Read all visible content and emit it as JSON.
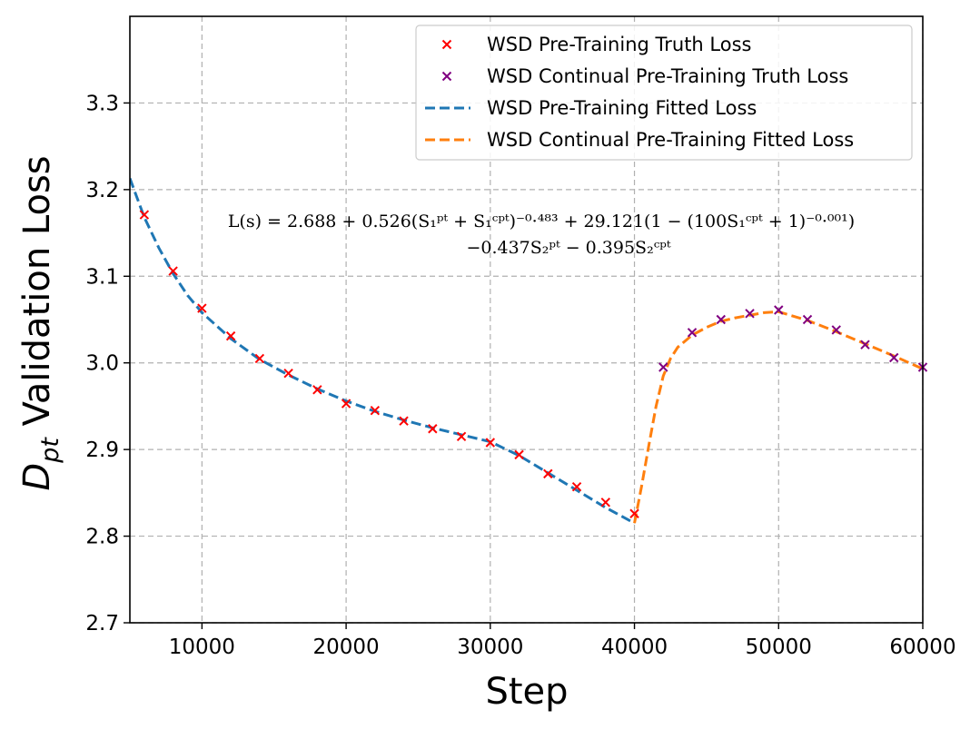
{
  "chart_data": {
    "type": "line",
    "xlabel": "Step",
    "ylabel": {
      "base": "D",
      "subscript": "pt",
      "rest": " Validation Loss"
    },
    "xlim": [
      5000,
      60000
    ],
    "ylim": [
      2.7,
      3.4
    ],
    "x_ticks": [
      10000,
      20000,
      30000,
      40000,
      50000,
      60000
    ],
    "y_ticks": [
      2.7,
      2.8,
      2.9,
      3.0,
      3.1,
      3.2,
      3.3
    ],
    "grid": true,
    "legend_position": "top-right",
    "annotation": {
      "line1": "L(s) = 2.688 + 0.526(S₁ᵖᵗ + S₁ᶜᵖᵗ)⁻⁰·⁴⁸³ + 29.121(1 − (100S₁ᶜᵖᵗ + 1)⁻⁰·⁰⁰¹)",
      "line2": "−0.437S₂ᵖᵗ − 0.395S₂ᶜᵖᵗ"
    },
    "series": [
      {
        "name": "WSD Pre-Training Truth Loss",
        "kind": "marker",
        "color": "#ff0000",
        "points": [
          [
            6000,
            3.171
          ],
          [
            8000,
            3.106
          ],
          [
            10000,
            3.063
          ],
          [
            12000,
            3.031
          ],
          [
            14000,
            3.005
          ],
          [
            16000,
            2.988
          ],
          [
            18000,
            2.969
          ],
          [
            20000,
            2.953
          ],
          [
            22000,
            2.945
          ],
          [
            24000,
            2.933
          ],
          [
            26000,
            2.924
          ],
          [
            28000,
            2.915
          ],
          [
            30000,
            2.908
          ],
          [
            32000,
            2.894
          ],
          [
            34000,
            2.872
          ],
          [
            36000,
            2.857
          ],
          [
            38000,
            2.839
          ],
          [
            40000,
            2.826
          ]
        ]
      },
      {
        "name": "WSD Continual Pre-Training Truth Loss",
        "kind": "marker",
        "color": "#800080",
        "points": [
          [
            42000,
            2.995
          ],
          [
            44000,
            3.035
          ],
          [
            46000,
            3.05
          ],
          [
            48000,
            3.057
          ],
          [
            50000,
            3.061
          ],
          [
            52000,
            3.05
          ],
          [
            54000,
            3.038
          ],
          [
            56000,
            3.021
          ],
          [
            58000,
            3.006
          ],
          [
            60000,
            2.995
          ]
        ]
      },
      {
        "name": "WSD Pre-Training Fitted Loss",
        "kind": "dashed-line",
        "color": "#1f77b4",
        "points": [
          [
            5000,
            3.213
          ],
          [
            6000,
            3.168
          ],
          [
            7000,
            3.133
          ],
          [
            8000,
            3.103
          ],
          [
            9000,
            3.078
          ],
          [
            10000,
            3.058
          ],
          [
            12000,
            3.028
          ],
          [
            14000,
            3.004
          ],
          [
            16000,
            2.986
          ],
          [
            18000,
            2.97
          ],
          [
            20000,
            2.956
          ],
          [
            22000,
            2.944
          ],
          [
            24000,
            2.934
          ],
          [
            26000,
            2.925
          ],
          [
            28000,
            2.917
          ],
          [
            30000,
            2.909
          ],
          [
            32000,
            2.893
          ],
          [
            34000,
            2.873
          ],
          [
            36000,
            2.853
          ],
          [
            38000,
            2.833
          ],
          [
            40000,
            2.815
          ]
        ]
      },
      {
        "name": "WSD Continual Pre-Training Fitted Loss",
        "kind": "dashed-line",
        "color": "#ff7f0e",
        "points": [
          [
            40000,
            2.815
          ],
          [
            40500,
            2.858
          ],
          [
            41000,
            2.905
          ],
          [
            41500,
            2.95
          ],
          [
            42000,
            2.985
          ],
          [
            42500,
            3.005
          ],
          [
            43000,
            3.018
          ],
          [
            44000,
            3.032
          ],
          [
            45000,
            3.041
          ],
          [
            46000,
            3.048
          ],
          [
            47000,
            3.052
          ],
          [
            48000,
            3.055
          ],
          [
            49000,
            3.058
          ],
          [
            50000,
            3.059
          ],
          [
            52000,
            3.049
          ],
          [
            54000,
            3.036
          ],
          [
            56000,
            3.022
          ],
          [
            58000,
            3.008
          ],
          [
            60000,
            2.993
          ]
        ]
      }
    ]
  }
}
